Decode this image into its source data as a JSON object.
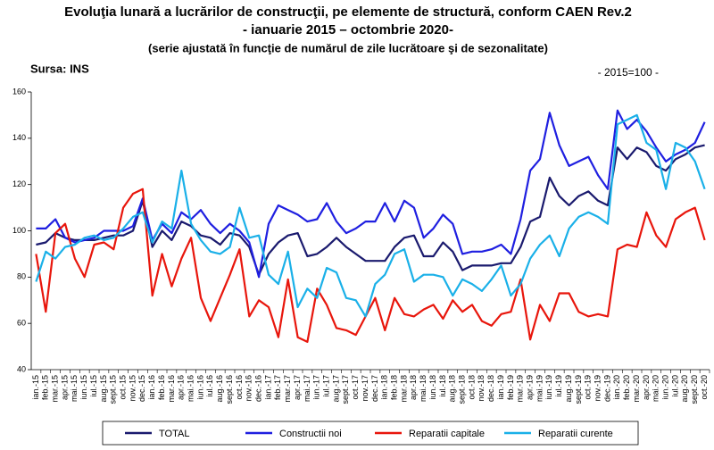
{
  "chart_data": {
    "type": "line",
    "title": "Evoluţia lunară a lucrărilor de construcţii, pe elemente de structură, conform CAEN Rev.2",
    "subtitle": "- ianuarie 2015 – octombrie 2020-",
    "note": "(serie ajustată în funcţie de numărul de zile lucrătoare şi de sezonalitate)",
    "source": "Sursa: INS",
    "base": "- 2015=100 -",
    "categories": [
      "ian.-15",
      "feb.-15",
      "mar.-15",
      "apr.-15",
      "mai.-15",
      "iun.-15",
      "iul.-15",
      "aug.-15",
      "sept.-15",
      "oct.-15",
      "nov.-15",
      "dec.-15",
      "ian.-16",
      "feb.-16",
      "mar.-16",
      "apr.-16",
      "mai.-16",
      "iun.-16",
      "iul.-16",
      "aug.-16",
      "sept.-16",
      "oct.-16",
      "nov.-16",
      "dec.-16",
      "ian.-17",
      "feb.-17",
      "mar.-17",
      "apr.-17",
      "mai.-17",
      "iun.-17",
      "iul.-17",
      "aug.-17",
      "sept.-17",
      "oct.-17",
      "nov.-17",
      "dec.-17",
      "ian.-18",
      "feb.-18",
      "mar.-18",
      "apr.-18",
      "mai.-18",
      "iun.-18",
      "iul.-18",
      "aug.-18",
      "sept.-18",
      "oct.-18",
      "nov.-18",
      "dec.-18",
      "ian.-19",
      "feb.-19",
      "mar.-19",
      "apr.-19",
      "mai.-19",
      "iun.-19",
      "iul.-19",
      "aug.-19",
      "sept.-19",
      "oct.-19",
      "nov.-19",
      "dec.-19",
      "ian.-20",
      "feb.-20",
      "mar.-20",
      "apr.-20",
      "mai.-20",
      "iun.-20",
      "iul.-20",
      "aug.-20",
      "sept.-20",
      "oct.-20"
    ],
    "series": [
      {
        "name": "TOTAL",
        "color": "#1a1a6e",
        "values": [
          94,
          95,
          99,
          97,
          96,
          96,
          96,
          97,
          98,
          98,
          100,
          113,
          93,
          100,
          96,
          104,
          102,
          98,
          97,
          94,
          99,
          98,
          93,
          81,
          90,
          95,
          98,
          99,
          89,
          90,
          93,
          97,
          93,
          90,
          87,
          87,
          87,
          93,
          97,
          98,
          89,
          89,
          95,
          91,
          83,
          85,
          85,
          85,
          86,
          86,
          93,
          104,
          106,
          123,
          115,
          111,
          115,
          117,
          113,
          111,
          136,
          131,
          136,
          134,
          128,
          126,
          131,
          133,
          136,
          137
        ]
      },
      {
        "name": "Constructii noi",
        "color": "#1f1fe0",
        "values": [
          101,
          101,
          105,
          97,
          95,
          96,
          97,
          100,
          100,
          100,
          102,
          114,
          96,
          103,
          99,
          108,
          105,
          109,
          103,
          99,
          103,
          100,
          95,
          80,
          103,
          111,
          109,
          107,
          104,
          105,
          112,
          104,
          99,
          101,
          104,
          104,
          112,
          104,
          113,
          110,
          97,
          101,
          107,
          103,
          90,
          91,
          91,
          92,
          94,
          90,
          105,
          126,
          131,
          151,
          137,
          128,
          130,
          132,
          124,
          118,
          152,
          144,
          148,
          143,
          136,
          130,
          133,
          135,
          138,
          147
        ]
      },
      {
        "name": "Reparatii capitale",
        "color": "#e8160c",
        "values": [
          90,
          65,
          99,
          103,
          88,
          80,
          94,
          95,
          92,
          110,
          116,
          118,
          72,
          90,
          76,
          88,
          97,
          71,
          61,
          71,
          81,
          92,
          63,
          70,
          67,
          54,
          79,
          54,
          52,
          75,
          68,
          58,
          57,
          55,
          63,
          71,
          57,
          71,
          64,
          63,
          66,
          68,
          62,
          70,
          65,
          68,
          61,
          59,
          64,
          65,
          79,
          53,
          68,
          61,
          73,
          73,
          65,
          63,
          64,
          63,
          92,
          94,
          93,
          108,
          98,
          93,
          105,
          108,
          110,
          96
        ]
      },
      {
        "name": "Reparatii curente",
        "color": "#1ab0e8",
        "values": [
          78,
          91,
          88,
          93,
          94,
          97,
          98,
          96,
          97,
          101,
          106,
          108,
          95,
          104,
          101,
          126,
          103,
          96,
          91,
          90,
          93,
          110,
          97,
          98,
          81,
          77,
          91,
          67,
          75,
          71,
          84,
          82,
          71,
          70,
          63,
          77,
          81,
          90,
          92,
          78,
          81,
          81,
          80,
          72,
          79,
          77,
          74,
          79,
          85,
          72,
          77,
          88,
          94,
          98,
          89,
          101,
          106,
          108,
          106,
          103,
          146,
          148,
          150,
          138,
          135,
          118,
          138,
          136,
          130,
          118
        ]
      }
    ],
    "ylim": [
      40,
      160
    ],
    "yticks": [
      40,
      60,
      80,
      100,
      120,
      140,
      160
    ]
  }
}
